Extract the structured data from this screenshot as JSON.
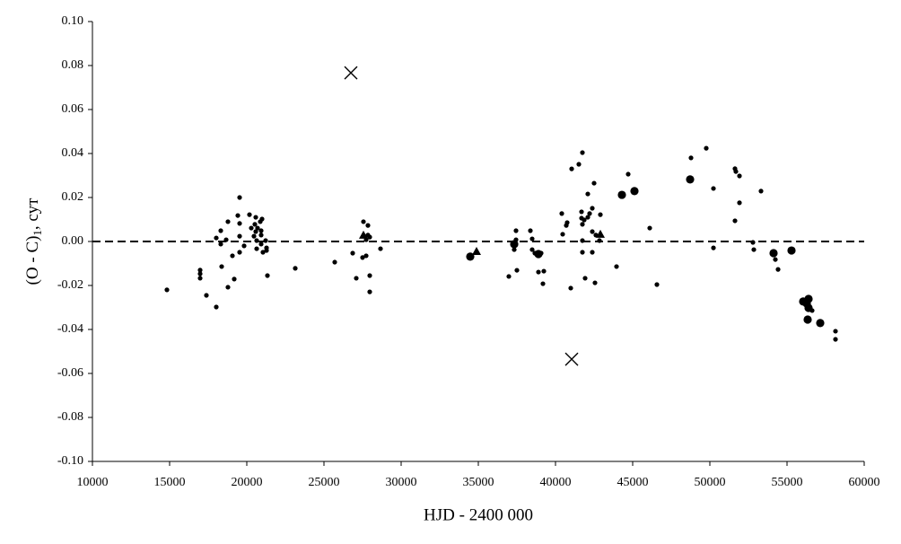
{
  "chart_data": {
    "type": "scatter",
    "x_label": "HJD - 2400 000",
    "y_label": {
      "main": "(O - C)",
      "sub": "1",
      "tail": ", сут"
    },
    "xlim": [
      10000,
      60000
    ],
    "ylim": [
      -0.1,
      0.1
    ],
    "xticks": [
      10000,
      15000,
      20000,
      25000,
      30000,
      35000,
      40000,
      45000,
      50000,
      55000,
      60000
    ],
    "yticks": [
      {
        "value": 0.1,
        "label": "0.10"
      },
      {
        "value": 0.08,
        "label": "0.08"
      },
      {
        "value": 0.06,
        "label": "0.06"
      },
      {
        "value": 0.04,
        "label": "0.04"
      },
      {
        "value": 0.02,
        "label": "0.02"
      },
      {
        "value": 0,
        "label": "0.00"
      },
      {
        "value": -0.02,
        "label": "-0.02"
      },
      {
        "value": -0.04,
        "label": "-0.04"
      },
      {
        "value": -0.06,
        "label": "-0.06"
      },
      {
        "value": -0.08,
        "label": "-0.08"
      },
      {
        "value": -0.1,
        "label": "-0.10"
      }
    ],
    "reference_line": 0,
    "color": "#000000",
    "series": [
      {
        "marker": "small-dot",
        "x": [
          14826,
          16977,
          16977,
          16977,
          17384,
          18023,
          18023,
          18314,
          18314,
          18372,
          18663,
          18779,
          18779,
          19070,
          19186,
          19419,
          19535,
          19535,
          19535,
          19535,
          19826,
          20174,
          20291,
          20465,
          20523,
          20581,
          20581,
          20640,
          20640,
          20698,
          20872,
          20930,
          20930,
          20930,
          20988,
          21047,
          21221,
          21279,
          21279,
          21337,
          23140,
          25698,
          26861,
          27093,
          27558,
          27500,
          27733,
          27733,
          27849,
          27849,
          27965,
          27965,
          27965,
          28663,
          36977,
          37326,
          37442,
          37442,
          37500,
          38372,
          38488,
          38488,
          38663,
          38895,
          39070,
          39186,
          39244,
          40407,
          40465,
          40698,
          40756,
          40988,
          41047,
          41512,
          41744,
          41744,
          41744,
          41744,
          41686,
          41686,
          41860,
          41919,
          42093,
          42093,
          42209,
          42384,
          42384,
          42384,
          42500,
          42558,
          42616,
          42849,
          42907,
          43953,
          44709,
          46105,
          46570,
          48779,
          49767,
          50233,
          50233,
          51628,
          51628,
          51686,
          51919,
          51919,
          52791,
          52849,
          53314,
          54244,
          54419,
          56628,
          58140,
          58140
        ],
        "y": [
          -0.022,
          -0.013,
          -0.0147,
          -0.0167,
          -0.0245,
          -0.0298,
          0.0016,
          0.0049,
          -0.0012,
          -0.0114,
          0.0008,
          0.009,
          -0.0208,
          -0.0065,
          -0.0171,
          0.0118,
          0.0082,
          0.0024,
          -0.0049,
          0.02,
          -0.002,
          0.0122,
          0.0061,
          0.0024,
          0.0078,
          0.011,
          0.0045,
          0.0004,
          -0.0033,
          0.0061,
          0.009,
          0.0049,
          0.0029,
          -0.0012,
          0.0102,
          -0.0049,
          0.0004,
          -0.0029,
          -0.0041,
          -0.0155,
          -0.0122,
          -0.0094,
          -0.0053,
          -0.0167,
          0.009,
          -0.0073,
          0.0008,
          -0.0065,
          0.0073,
          0.0029,
          0.002,
          -0.0155,
          -0.0229,
          -0.0033,
          -0.0159,
          -0.0037,
          0.0049,
          0.0008,
          -0.0131,
          0.0049,
          0.0012,
          -0.0037,
          -0.0053,
          -0.0139,
          -0.0053,
          -0.0192,
          -0.0135,
          0.0127,
          0.0033,
          0.0073,
          0.0086,
          -0.0212,
          0.033,
          0.0351,
          0.0404,
          0.0078,
          0.0004,
          -0.0049,
          0.0135,
          0.0106,
          0.0098,
          -0.0167,
          0.0216,
          0.011,
          0.0127,
          0.0151,
          0.0045,
          -0.0049,
          0.0265,
          -0.0188,
          0.0029,
          0.0004,
          0.0122,
          -0.0114,
          0.0306,
          0.0061,
          -0.0196,
          0.038,
          0.0424,
          0.0241,
          -0.0029,
          0.0331,
          0.0094,
          0.0318,
          0.0298,
          0.0176,
          -0.0004,
          -0.0037,
          0.0229,
          -0.0082,
          -0.0127,
          -0.0314,
          -0.0408,
          -0.0445
        ]
      },
      {
        "marker": "large-dot",
        "x": [
          34477,
          37326,
          38895,
          44302,
          45116,
          48721,
          54128,
          55291,
          56046,
          56279,
          56395,
          56395,
          56337,
          57151
        ],
        "y": [
          -0.0069,
          -0.0012,
          -0.0057,
          0.0212,
          0.0229,
          0.0282,
          -0.0053,
          -0.0041,
          -0.0273,
          -0.0282,
          -0.0261,
          -0.0302,
          -0.0355,
          -0.0371
        ]
      },
      {
        "marker": "triangle",
        "x": [
          27558,
          34884,
          42907
        ],
        "y": [
          0.0029,
          -0.0045,
          0.0033
        ]
      },
      {
        "marker": "cross",
        "x": [
          26744,
          41047
        ],
        "y": [
          0.0767,
          -0.0535
        ]
      }
    ]
  }
}
